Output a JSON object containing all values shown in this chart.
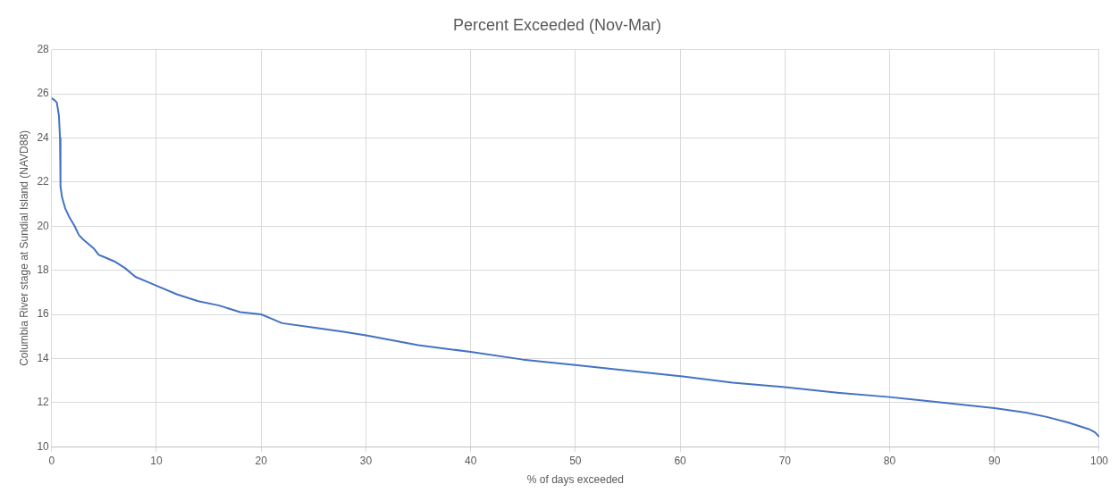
{
  "chart_data": {
    "type": "line",
    "title": "Percent Exceeded (Nov-Mar)",
    "xlabel": "% of days exceeded",
    "ylabel": "Columbia River stage at Sundial Island (NAVD88)",
    "series": [
      {
        "color": "#4472c4",
        "x": [
          0,
          0.3,
          0.5,
          0.7,
          0.8,
          0.85,
          1.0,
          1.3,
          1.7,
          2.2,
          2.6,
          3,
          4,
          4.5,
          5,
          6,
          7,
          8,
          9,
          10,
          12,
          14,
          16,
          18,
          20,
          21,
          22,
          25,
          28,
          30,
          35,
          40,
          45,
          50,
          55,
          60,
          65,
          70,
          75,
          80,
          85,
          90,
          93,
          95,
          97,
          99,
          99.6,
          100
        ],
        "values": [
          25.8,
          25.7,
          25.6,
          25.0,
          24.0,
          21.8,
          21.3,
          20.8,
          20.4,
          20.0,
          19.6,
          19.4,
          19.0,
          18.7,
          18.6,
          18.4,
          18.1,
          17.7,
          17.5,
          17.3,
          16.9,
          16.6,
          16.4,
          16.1,
          16.0,
          15.8,
          15.6,
          15.4,
          15.2,
          15.05,
          14.6,
          14.3,
          13.95,
          13.7,
          13.45,
          13.2,
          12.9,
          12.7,
          12.45,
          12.25,
          12.0,
          11.75,
          11.55,
          11.35,
          11.1,
          10.8,
          10.65,
          10.45
        ]
      }
    ],
    "xlim": [
      0,
      100
    ],
    "xticks": [
      0,
      10,
      20,
      30,
      40,
      50,
      60,
      70,
      80,
      90,
      100
    ],
    "ylim": [
      10,
      28
    ],
    "yticks": [
      10,
      12,
      14,
      16,
      18,
      20,
      22,
      24,
      26,
      28
    ],
    "grid": true,
    "legend": false
  }
}
